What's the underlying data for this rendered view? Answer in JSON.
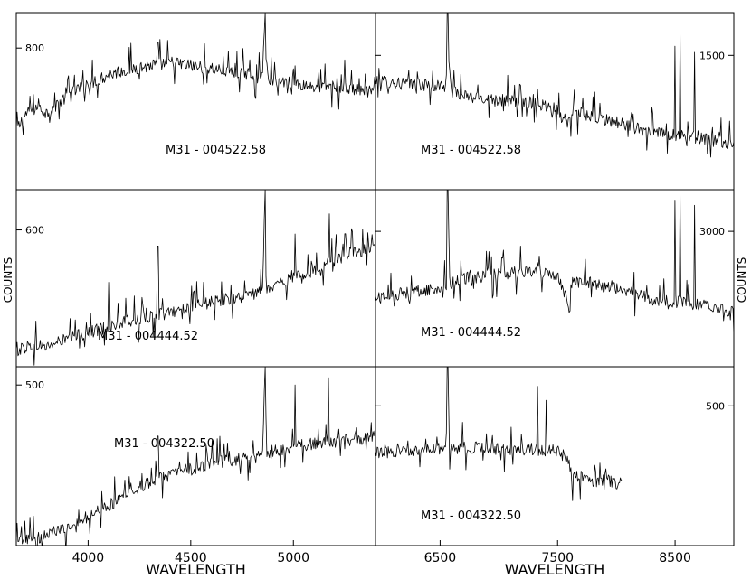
{
  "chart_data": {
    "type": "line",
    "ylabel_left": "COUNTS",
    "ylabel_right": "COUNTS",
    "columns": [
      {
        "xlabel": "WAVELENGTH",
        "xlim": [
          3650,
          5400
        ],
        "xticks": [
          4000,
          4500,
          5000
        ],
        "panels": [
          {
            "label": "M31 - 004522.58",
            "ytick": 800,
            "ylim": [
              560,
              860
            ],
            "series": [
              {
                "x": [
                  3650,
                  3700,
                  3750,
                  3800,
                  3900,
                  4000,
                  4100,
                  4200,
                  4300,
                  4400,
                  4500,
                  4600,
                  4700,
                  4800,
                  4850,
                  4861,
                  4870,
                  4900,
                  5000,
                  5100,
                  5200,
                  5300,
                  5400
                ],
                "y": [
                  660,
                  690,
                  700,
                  690,
                  720,
                  740,
                  755,
                  765,
                  770,
                  775,
                  770,
                  765,
                  760,
                  755,
                  752,
                  860,
                  752,
                  745,
                  740,
                  735,
                  735,
                  730,
                  725
                ]
              }
            ],
            "emission": [
              [
                4861,
                860
              ],
              [
                4340,
                810
              ],
              [
                5007,
                770
              ],
              [
                5250,
                780
              ]
            ]
          },
          {
            "label": "M31 - 004444.52",
            "ytick": 600,
            "ylim": [
              260,
              700
            ],
            "series": [
              {
                "x": [
                  3650,
                  3700,
                  3750,
                  3800,
                  3900,
                  4000,
                  4100,
                  4200,
                  4300,
                  4400,
                  4500,
                  4600,
                  4700,
                  4800,
                  4850,
                  4861,
                  4870,
                  4900,
                  5000,
                  5100,
                  5200,
                  5300,
                  5400
                ],
                "y": [
                  300,
                  310,
                  315,
                  310,
                  330,
                  345,
                  360,
                  375,
                  385,
                  395,
                  410,
                  420,
                  430,
                  440,
                  448,
                  700,
                  450,
                  460,
                  480,
                  500,
                  525,
                  545,
                  555
                ]
              }
            ],
            "emission": [
              [
                4861,
                700
              ],
              [
                4340,
                560
              ],
              [
                4102,
                470
              ],
              [
                5007,
                590
              ],
              [
                5175,
                640
              ]
            ]
          },
          {
            "label": "M31 - 004322.50",
            "ytick": 500,
            "ylim": [
              60,
              550
            ],
            "series": [
              {
                "x": [
                  3650,
                  3700,
                  3750,
                  3800,
                  3900,
                  4000,
                  4100,
                  4200,
                  4300,
                  4400,
                  4500,
                  4600,
                  4700,
                  4800,
                  4850,
                  4861,
                  4870,
                  4900,
                  5000,
                  5100,
                  5200,
                  5300,
                  5400
                ],
                "y": [
                  70,
                  75,
                  80,
                  90,
                  110,
                  140,
                  170,
                  205,
                  235,
                  255,
                  270,
                  285,
                  295,
                  300,
                  305,
                  550,
                  310,
                  320,
                  330,
                  340,
                  345,
                  350,
                  360
                ]
              }
            ],
            "emission": [
              [
                4861,
                550
              ],
              [
                5007,
                500
              ],
              [
                5170,
                520
              ],
              [
                4340,
                360
              ]
            ]
          }
        ]
      },
      {
        "xlabel": "WAVELENGTH",
        "xlim": [
          5950,
          9000
        ],
        "xticks": [
          6500,
          7500,
          8500
        ],
        "panels": [
          {
            "label": "M31 - 004522.58",
            "ytick": 1500,
            "ylim": [
              620,
              1780
            ],
            "series": [
              {
                "x": [
                  5950,
                  6100,
                  6300,
                  6500,
                  6550,
                  6563,
                  6580,
                  6700,
                  6900,
                  7100,
                  7300,
                  7500,
                  7600,
                  7620,
                  7700,
                  7900,
                  8100,
                  8300,
                  8500,
                  8700,
                  8900,
                  9000
                ],
                "y": [
                  1330,
                  1320,
                  1310,
                  1300,
                  1300,
                  1780,
                  1300,
                  1230,
                  1220,
                  1200,
                  1190,
                  1150,
                  1050,
                  1100,
                  1120,
                  1080,
                  1040,
                  1000,
                  980,
                  960,
                  930,
                  910
                ]
              }
            ],
            "emission": [
              [
                6563,
                1780
              ],
              [
                8500,
                1560
              ],
              [
                8545,
                1640
              ],
              [
                8665,
                1520
              ],
              [
                7330,
                1280
              ]
            ]
          },
          {
            "label": "M31 - 004444.52",
            "ytick": 3000,
            "ylim": [
              400,
              3800
            ],
            "series": [
              {
                "x": [
                  5950,
                  6100,
                  6300,
                  6500,
                  6550,
                  6563,
                  6580,
                  6700,
                  6900,
                  7100,
                  7300,
                  7500,
                  7600,
                  7620,
                  7700,
                  7900,
                  8100,
                  8300,
                  8500,
                  8700,
                  8900,
                  9000
                ],
                "y": [
                  1720,
                  1780,
                  1850,
                  1900,
                  1950,
                  3800,
                  2000,
                  2100,
                  2150,
                  2200,
                  2250,
                  2170,
                  1600,
                  2000,
                  2050,
                  1950,
                  1850,
                  1700,
                  1650,
                  1600,
                  1500,
                  1450
                ]
              }
            ],
            "emission": [
              [
                6563,
                3800
              ],
              [
                8500,
                3600
              ],
              [
                8545,
                3700
              ],
              [
                8665,
                3500
              ],
              [
                7330,
                2400
              ]
            ]
          },
          {
            "label": "M31 - 004322.50",
            "ytick": 500,
            "ylim": [
              0,
              640
            ],
            "series": [
              {
                "x": [
                  5950,
                  6100,
                  6300,
                  6500,
                  6550,
                  6563,
                  6580,
                  6700,
                  6900,
                  7100,
                  7300,
                  7500,
                  7600,
                  7620,
                  7700,
                  7800,
                  7900,
                  8000,
                  8050
                ],
                "y": [
                  330,
                  335,
                  340,
                  345,
                  345,
                  640,
                  345,
                  350,
                  350,
                  345,
                  345,
                  340,
                  290,
                  240,
                  250,
                  230,
                  240,
                  220,
                  240
                ]
              }
            ],
            "emission": [
              [
                6563,
                640
              ],
              [
                7330,
                570
              ],
              [
                7400,
                520
              ]
            ]
          }
        ]
      }
    ]
  }
}
